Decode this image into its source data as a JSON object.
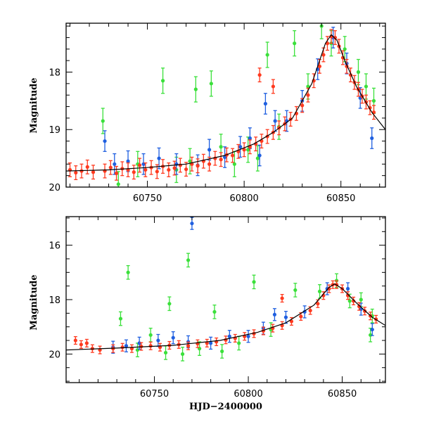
{
  "chart_data": [
    {
      "type": "scatter",
      "ylabel": "Magnitude",
      "xlabel": "",
      "xlim": [
        60708,
        60873
      ],
      "ylim": [
        20.0,
        17.15
      ],
      "y_inverted": true,
      "xticks": [
        60750,
        60800,
        60850
      ],
      "yticks": [
        18,
        19,
        20
      ],
      "colors": {
        "red": "#ff3a1f",
        "blue": "#1f5fe0",
        "green": "#3be03b",
        "model": "#000000"
      },
      "model_curve": [
        [
          60708,
          19.72
        ],
        [
          60730,
          19.7
        ],
        [
          60750,
          19.66
        ],
        [
          60770,
          19.6
        ],
        [
          60790,
          19.45
        ],
        [
          60805,
          19.25
        ],
        [
          60815,
          19.05
        ],
        [
          60825,
          18.8
        ],
        [
          60835,
          18.2
        ],
        [
          60842,
          17.5
        ],
        [
          60845,
          17.35
        ],
        [
          60848,
          17.45
        ],
        [
          60852,
          17.8
        ],
        [
          60858,
          18.25
        ],
        [
          60866,
          18.7
        ],
        [
          60873,
          19.0
        ]
      ],
      "series": [
        {
          "points": [
            [
              60710,
              19.7
            ],
            [
              60713,
              19.75
            ],
            [
              60716,
              19.72
            ],
            [
              60719,
              19.65
            ],
            [
              60722,
              19.74
            ],
            [
              60728,
              19.72
            ],
            [
              60731,
              19.66
            ],
            [
              60734,
              19.76
            ],
            [
              60737,
              19.68
            ],
            [
              60740,
              19.7
            ],
            [
              60743,
              19.74
            ],
            [
              60746,
              19.62
            ],
            [
              60749,
              19.7
            ],
            [
              60752,
              19.66
            ],
            [
              60755,
              19.73
            ],
            [
              60758,
              19.64
            ],
            [
              60761,
              19.7
            ],
            [
              60764,
              19.67
            ],
            [
              60767,
              19.62
            ],
            [
              60770,
              19.69
            ],
            [
              60773,
              19.6
            ],
            [
              60776,
              19.63
            ],
            [
              60779,
              19.55
            ],
            [
              60782,
              19.6
            ],
            [
              60785,
              19.5
            ],
            [
              60788,
              19.52
            ],
            [
              60791,
              19.44
            ],
            [
              60794,
              19.45
            ],
            [
              60797,
              19.38
            ],
            [
              60800,
              19.35
            ],
            [
              60803,
              19.3
            ],
            [
              60806,
              19.25
            ],
            [
              60809,
              19.2
            ],
            [
              60812,
              19.12
            ],
            [
              60815,
              19.05
            ],
            [
              60818,
              18.97
            ],
            [
              60821,
              18.9
            ],
            [
              60824,
              18.82
            ],
            [
              60827,
              18.72
            ],
            [
              60830,
              18.58
            ],
            [
              60833,
              18.4
            ],
            [
              60836,
              18.15
            ],
            [
              60839,
              17.9
            ],
            [
              60841,
              17.7
            ],
            [
              60843,
              17.5
            ],
            [
              60845,
              17.38
            ],
            [
              60847,
              17.4
            ],
            [
              60849,
              17.55
            ],
            [
              60851,
              17.75
            ],
            [
              60853,
              17.9
            ],
            [
              60855,
              18.05
            ],
            [
              60857,
              18.18
            ],
            [
              60859,
              18.3
            ],
            [
              60861,
              18.42
            ],
            [
              60863,
              18.52
            ],
            [
              60865,
              18.62
            ],
            [
              60867,
              18.7
            ],
            [
              60808,
              18.05
            ],
            [
              60815,
              18.25
            ]
          ],
          "err": 0.12,
          "color": "#ff3a1f"
        },
        {
          "points": [
            [
              60728,
              19.2
            ],
            [
              60733,
              19.6
            ],
            [
              60740,
              19.55
            ],
            [
              60748,
              19.6
            ],
            [
              60756,
              19.5
            ],
            [
              60765,
              19.6
            ],
            [
              60776,
              19.62
            ],
            [
              60782,
              19.35
            ],
            [
              60790,
              19.48
            ],
            [
              60798,
              19.3
            ],
            [
              60803,
              19.15
            ],
            [
              60808,
              19.45
            ],
            [
              60811,
              18.55
            ],
            [
              60816,
              18.85
            ],
            [
              60822,
              18.85
            ],
            [
              60830,
              18.5
            ],
            [
              60838,
              17.95
            ],
            [
              60846,
              17.4
            ],
            [
              60853,
              17.85
            ],
            [
              60860,
              18.45
            ],
            [
              60866,
              19.15
            ]
          ],
          "err": 0.18,
          "color": "#1f5fe0"
        },
        {
          "points": [
            [
              60727,
              18.85
            ],
            [
              60735,
              19.95
            ],
            [
              60745,
              19.6
            ],
            [
              60758,
              18.15
            ],
            [
              60765,
              19.7
            ],
            [
              60772,
              19.55
            ],
            [
              60775,
              18.3
            ],
            [
              60783,
              18.2
            ],
            [
              60788,
              19.3
            ],
            [
              60795,
              19.6
            ],
            [
              60802,
              19.35
            ],
            [
              60807,
              19.5
            ],
            [
              60812,
              17.7
            ],
            [
              60818,
              18.95
            ],
            [
              60826,
              17.5
            ],
            [
              60833,
              18.25
            ],
            [
              60840,
              17.2
            ],
            [
              60845,
              17.5
            ],
            [
              60852,
              17.6
            ],
            [
              60859,
              18.0
            ],
            [
              60863,
              18.25
            ],
            [
              60867,
              18.5
            ]
          ],
          "err": 0.22,
          "color": "#3be03b"
        }
      ]
    },
    {
      "type": "scatter",
      "ylabel": "Magnitude",
      "xlabel": "HJD−2400000",
      "xlim": [
        60703,
        60873
      ],
      "ylim": [
        21.05,
        14.95
      ],
      "y_inverted": true,
      "xticks": [
        60750,
        60800,
        60850
      ],
      "yticks": [
        16,
        18,
        20
      ],
      "colors": {
        "red": "#ff3a1f",
        "blue": "#1f5fe0",
        "green": "#3be03b",
        "model": "#000000"
      },
      "model_curve": [
        [
          60703,
          19.85
        ],
        [
          60730,
          19.78
        ],
        [
          60760,
          19.68
        ],
        [
          60785,
          19.5
        ],
        [
          60805,
          19.2
        ],
        [
          60820,
          18.85
        ],
        [
          60835,
          18.2
        ],
        [
          60843,
          17.55
        ],
        [
          60846,
          17.42
        ],
        [
          60850,
          17.6
        ],
        [
          60858,
          18.15
        ],
        [
          60866,
          18.65
        ],
        [
          60873,
          18.95
        ]
      ],
      "series": [
        {
          "points": [
            [
              60708,
              19.5
            ],
            [
              60711,
              19.65
            ],
            [
              60714,
              19.6
            ],
            [
              60717,
              19.8
            ],
            [
              60721,
              19.85
            ],
            [
              60728,
              19.8
            ],
            [
              60733,
              19.75
            ],
            [
              60738,
              19.8
            ],
            [
              60743,
              19.72
            ],
            [
              60748,
              19.7
            ],
            [
              60753,
              19.75
            ],
            [
              60758,
              19.68
            ],
            [
              60763,
              19.65
            ],
            [
              60768,
              19.7
            ],
            [
              60773,
              19.62
            ],
            [
              60778,
              19.6
            ],
            [
              60783,
              19.55
            ],
            [
              60788,
              19.48
            ],
            [
              60793,
              19.42
            ],
            [
              60798,
              19.35
            ],
            [
              60803,
              19.25
            ],
            [
              60808,
              19.15
            ],
            [
              60813,
              19.05
            ],
            [
              60818,
              18.95
            ],
            [
              60823,
              18.8
            ],
            [
              60828,
              18.62
            ],
            [
              60833,
              18.4
            ],
            [
              60837,
              18.15
            ],
            [
              60840,
              17.85
            ],
            [
              60843,
              17.6
            ],
            [
              60845,
              17.45
            ],
            [
              60847,
              17.45
            ],
            [
              60850,
              17.6
            ],
            [
              60853,
              17.85
            ],
            [
              60856,
              18.05
            ],
            [
              60859,
              18.25
            ],
            [
              60862,
              18.42
            ],
            [
              60865,
              18.6
            ],
            [
              60868,
              18.72
            ],
            [
              60818,
              17.95
            ]
          ],
          "err": 0.14,
          "color": "#ff3a1f"
        },
        {
          "points": [
            [
              60770,
              15.2
            ],
            [
              60728,
              19.75
            ],
            [
              60735,
              19.7
            ],
            [
              60742,
              19.6
            ],
            [
              60752,
              19.5
            ],
            [
              60760,
              19.4
            ],
            [
              60768,
              19.55
            ],
            [
              60780,
              19.6
            ],
            [
              60790,
              19.35
            ],
            [
              60800,
              19.35
            ],
            [
              60808,
              19.05
            ],
            [
              60814,
              18.55
            ],
            [
              60820,
              18.65
            ],
            [
              60830,
              18.45
            ],
            [
              60842,
              17.6
            ],
            [
              60853,
              17.6
            ],
            [
              60860,
              18.35
            ],
            [
              60866,
              19.1
            ]
          ],
          "err": 0.22,
          "color": "#1f5fe0"
        },
        {
          "points": [
            [
              60736,
              17.0
            ],
            [
              60768,
              16.55
            ],
            [
              60758,
              18.15
            ],
            [
              60782,
              18.45
            ],
            [
              60803,
              17.35
            ],
            [
              60825,
              17.65
            ],
            [
              60732,
              18.7
            ],
            [
              60741,
              19.85
            ],
            [
              60748,
              19.3
            ],
            [
              60756,
              19.95
            ],
            [
              60765,
              20.0
            ],
            [
              60774,
              19.8
            ],
            [
              60786,
              19.9
            ],
            [
              60795,
              19.6
            ],
            [
              60812,
              19.1
            ],
            [
              60838,
              17.7
            ],
            [
              60847,
              17.3
            ],
            [
              60854,
              18.05
            ],
            [
              60860,
              18.0
            ],
            [
              60866,
              18.6
            ],
            [
              60865,
              19.3
            ]
          ],
          "err": 0.25,
          "color": "#3be03b"
        }
      ]
    }
  ]
}
